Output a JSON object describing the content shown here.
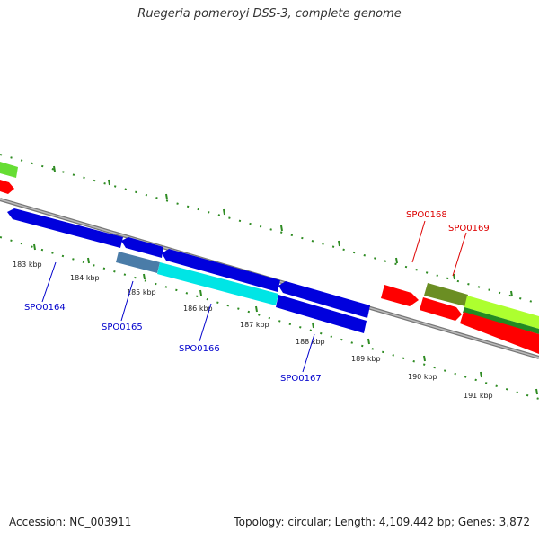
{
  "title": "Ruegeria pomeroyi DSS-3, complete genome",
  "footer": {
    "accession": "Accession: NC_003911",
    "summary": "Topology: circular; Length: 4,109,442 bp; Genes: 3,872"
  },
  "colors": {
    "forward_strand_red": "#ff0000",
    "reverse_strand_blue": "#0000dd",
    "highlight_cyan": "#00e5e5",
    "steel_blue": "#4a7ca8",
    "olive": "#6b8e23",
    "light_green": "#66dd33",
    "yellow_green": "#adff2f",
    "dark_green": "#228b22",
    "tick_green": "#2e8b22",
    "backbone_gray": "#888888",
    "label_blue": "#0000cc",
    "label_red": "#dd0000"
  },
  "tick_labels": [
    "183 kbp",
    "184 kbp",
    "185 kbp",
    "186 kbp",
    "187 kbp",
    "188 kbp",
    "189 kbp",
    "190 kbp",
    "191 kbp"
  ],
  "gene_labels": [
    {
      "text": "SPO0164",
      "strand": "reverse"
    },
    {
      "text": "SPO0165",
      "strand": "reverse"
    },
    {
      "text": "SPO0166",
      "strand": "reverse"
    },
    {
      "text": "SPO0167",
      "strand": "reverse"
    },
    {
      "text": "SPO0168",
      "strand": "forward"
    },
    {
      "text": "SPO0169",
      "strand": "forward"
    }
  ]
}
